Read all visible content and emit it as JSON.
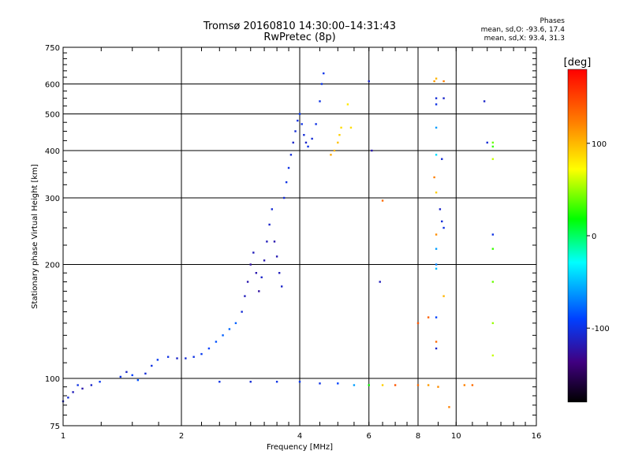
{
  "chart_data": {
    "type": "scatter",
    "title": "Tromsø 20160810 14:30:00–14:31:43",
    "subtitle": "RwPretec (8p)",
    "xlabel": "Frequency [MHz]",
    "ylabel": "Stationary phase Virtual Height [km]",
    "x_scale": "log2",
    "y_scale": "log",
    "xlim": [
      1,
      16
    ],
    "ylim": [
      75,
      750
    ],
    "x_ticks": [
      1,
      2,
      4,
      6,
      8,
      10,
      16
    ],
    "x_tick_labels": [
      "1",
      "2",
      "4",
      "6",
      "8",
      "10",
      "16"
    ],
    "y_ticks": [
      75,
      100,
      200,
      300,
      400,
      500,
      600,
      750
    ],
    "y_tick_labels": [
      "75",
      "100",
      "200",
      "300",
      "400",
      "500",
      "600",
      "750"
    ],
    "grid": true,
    "phase_stats": {
      "heading": "Phases",
      "o_label": "mean, sd,O:",
      "o_value": "-93.6, 17.4",
      "x_label": "mean, sd,X:",
      "x_value": "93.4, 31.3"
    },
    "colorbar": {
      "label": "[deg]",
      "range": [
        -180,
        180
      ],
      "ticks": [
        100,
        0,
        -100
      ],
      "tick_labels": [
        "100",
        "0",
        "-100"
      ]
    },
    "series": [
      {
        "note_hidden": true,
        "points": [
          [
            1.0,
            87,
            -110
          ],
          [
            1.03,
            89,
            -105
          ],
          [
            1.06,
            92,
            -115
          ],
          [
            1.09,
            96,
            -100
          ],
          [
            1.12,
            94,
            -120
          ],
          [
            1.18,
            96,
            -110
          ],
          [
            1.24,
            98,
            -95
          ],
          [
            1.4,
            101,
            -100
          ],
          [
            1.45,
            104,
            -110
          ],
          [
            1.5,
            102,
            -90
          ],
          [
            1.55,
            99,
            -85
          ],
          [
            1.62,
            103,
            -105
          ],
          [
            1.68,
            108,
            -100
          ],
          [
            1.74,
            112,
            -95
          ],
          [
            1.85,
            114,
            -100
          ],
          [
            1.95,
            113,
            -110
          ],
          [
            2.05,
            113,
            -105
          ],
          [
            2.15,
            114,
            -100
          ],
          [
            2.25,
            116,
            -95
          ],
          [
            2.35,
            120,
            -90
          ],
          [
            2.45,
            125,
            -85
          ],
          [
            2.55,
            130,
            -80
          ],
          [
            2.65,
            135,
            -78
          ],
          [
            2.75,
            140,
            -80
          ],
          [
            2.85,
            150,
            -105
          ],
          [
            2.9,
            165,
            -115
          ],
          [
            2.95,
            180,
            -120
          ],
          [
            3.0,
            200,
            -125
          ],
          [
            3.05,
            215,
            -115
          ],
          [
            3.1,
            190,
            -120
          ],
          [
            3.15,
            170,
            -125
          ],
          [
            3.2,
            185,
            -110
          ],
          [
            3.25,
            205,
            -120
          ],
          [
            3.3,
            230,
            -115
          ],
          [
            3.35,
            255,
            -110
          ],
          [
            3.4,
            280,
            -105
          ],
          [
            3.45,
            230,
            -120
          ],
          [
            3.5,
            210,
            -118
          ],
          [
            3.55,
            190,
            -115
          ],
          [
            3.6,
            175,
            -110
          ],
          [
            3.65,
            300,
            -105
          ],
          [
            3.7,
            330,
            -100
          ],
          [
            3.75,
            360,
            -100
          ],
          [
            3.8,
            390,
            -105
          ],
          [
            3.85,
            420,
            -110
          ],
          [
            3.9,
            450,
            -105
          ],
          [
            3.95,
            480,
            -100
          ],
          [
            4.0,
            500,
            -95
          ],
          [
            4.05,
            470,
            -100
          ],
          [
            4.1,
            440,
            -105
          ],
          [
            4.15,
            420,
            -110
          ],
          [
            4.2,
            410,
            -100
          ],
          [
            4.3,
            430,
            -105
          ],
          [
            4.4,
            470,
            -100
          ],
          [
            4.5,
            540,
            -100
          ],
          [
            4.55,
            600,
            -98
          ],
          [
            4.6,
            640,
            -97
          ],
          [
            4.8,
            390,
            105
          ],
          [
            4.9,
            400,
            100
          ],
          [
            5.0,
            420,
            95
          ],
          [
            5.05,
            440,
            90
          ],
          [
            5.1,
            460,
            85
          ],
          [
            5.3,
            530,
            80
          ],
          [
            5.4,
            460,
            85
          ],
          [
            2.5,
            98,
            -100
          ],
          [
            3.0,
            98,
            -105
          ],
          [
            3.5,
            98,
            -100
          ],
          [
            4.0,
            98,
            -95
          ],
          [
            4.5,
            97,
            -100
          ],
          [
            5.0,
            97,
            -90
          ],
          [
            5.5,
            96,
            -60
          ],
          [
            6.0,
            96,
            20
          ],
          [
            6.5,
            96,
            90
          ],
          [
            7.0,
            96,
            140
          ],
          [
            8.0,
            96,
            130
          ],
          [
            8.5,
            96,
            110
          ],
          [
            9.0,
            95,
            115
          ],
          [
            10.5,
            96,
            120
          ],
          [
            11.0,
            96,
            130
          ],
          [
            6.0,
            610,
            -110
          ],
          [
            6.1,
            400,
            -120
          ],
          [
            6.4,
            180,
            -115
          ],
          [
            6.5,
            295,
            130
          ],
          [
            8.0,
            140,
            140
          ],
          [
            8.5,
            145,
            135
          ],
          [
            8.8,
            610,
            110
          ],
          [
            8.9,
            620,
            100
          ],
          [
            9.3,
            610,
            120
          ],
          [
            8.9,
            550,
            -105
          ],
          [
            8.9,
            530,
            -100
          ],
          [
            9.3,
            550,
            -110
          ],
          [
            8.9,
            460,
            -60
          ],
          [
            8.9,
            390,
            -40
          ],
          [
            9.2,
            380,
            -105
          ],
          [
            8.8,
            340,
            120
          ],
          [
            8.9,
            310,
            90
          ],
          [
            9.1,
            280,
            -110
          ],
          [
            9.2,
            260,
            -105
          ],
          [
            9.3,
            250,
            -100
          ],
          [
            8.9,
            240,
            115
          ],
          [
            8.9,
            220,
            -60
          ],
          [
            8.9,
            200,
            -70
          ],
          [
            8.9,
            195,
            -50
          ],
          [
            9.3,
            165,
            100
          ],
          [
            8.9,
            145,
            -90
          ],
          [
            8.9,
            125,
            130
          ],
          [
            8.9,
            120,
            -110
          ],
          [
            9.6,
            84,
            120
          ],
          [
            11.8,
            540,
            -110
          ],
          [
            12.0,
            420,
            -105
          ],
          [
            12.4,
            420,
            40
          ],
          [
            12.4,
            410,
            30
          ],
          [
            12.4,
            380,
            60
          ],
          [
            12.4,
            240,
            -100
          ],
          [
            12.4,
            220,
            30
          ],
          [
            12.4,
            180,
            40
          ],
          [
            12.4,
            140,
            50
          ],
          [
            12.4,
            115,
            60
          ]
        ]
      }
    ]
  }
}
